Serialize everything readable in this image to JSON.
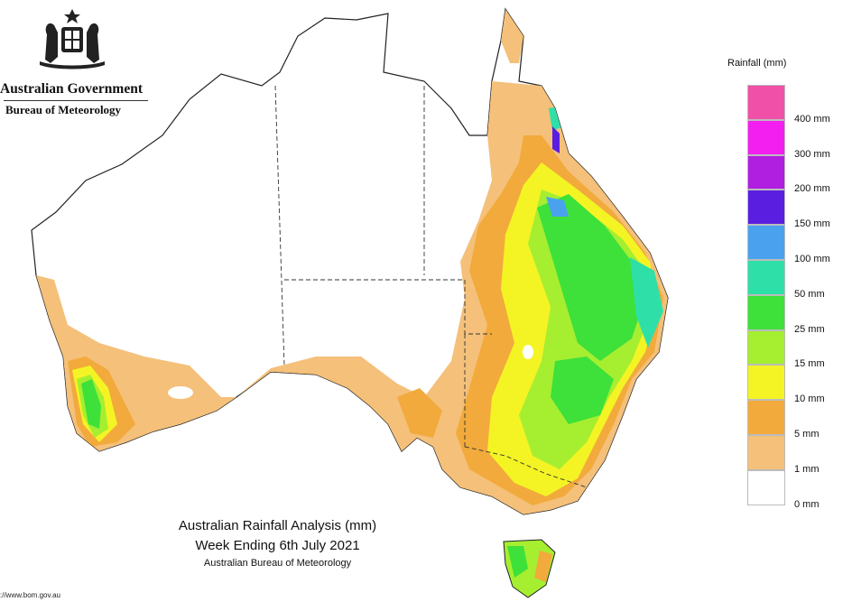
{
  "header": {
    "government": "Australian Government",
    "bureau": "Bureau of Meteorology"
  },
  "caption": {
    "title": "Australian Rainfall Analysis (mm)",
    "period": "Week Ending 6th July 2021",
    "source": "Australian Bureau of Meteorology"
  },
  "footer": {
    "url": "://www.bom.gov.au"
  },
  "legend": {
    "title": "Rainfall (mm)",
    "bands": [
      {
        "color": "#f050a8"
      },
      {
        "color": "#f31ef0"
      },
      {
        "color": "#b01ee0"
      },
      {
        "color": "#5a1ee0"
      },
      {
        "color": "#4aa2ee"
      },
      {
        "color": "#2ee0a8"
      },
      {
        "color": "#3ee03a"
      },
      {
        "color": "#a6ee30"
      },
      {
        "color": "#f4f424"
      },
      {
        "color": "#f2aa3c"
      },
      {
        "color": "#f4c07a"
      },
      {
        "color": "#ffffff"
      }
    ],
    "labels": [
      "400 mm",
      "300 mm",
      "200 mm",
      "150 mm",
      "100 mm",
      "50 mm",
      "25 mm",
      "15 mm",
      "10 mm",
      "5 mm",
      "1 mm",
      "0 mm"
    ]
  }
}
